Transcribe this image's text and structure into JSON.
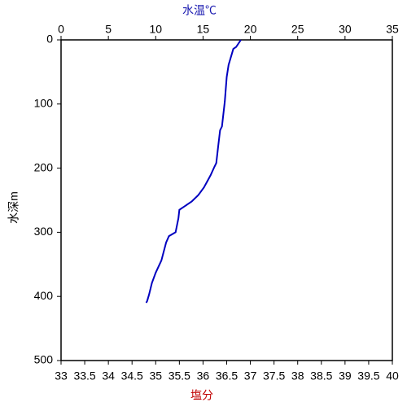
{
  "chart_data": {
    "type": "line",
    "x_label": "水温℃",
    "x2_label": "塩分",
    "y_label": "水深m",
    "xlim": [
      0,
      35
    ],
    "xticks": [
      0,
      5,
      10,
      15,
      20,
      25,
      30,
      35
    ],
    "x2lim": [
      33,
      40
    ],
    "x2ticks": [
      33,
      33.5,
      34,
      34.5,
      35,
      35.5,
      36,
      36.5,
      37,
      37.5,
      38,
      38.5,
      39,
      39.5,
      40
    ],
    "ylim": [
      500,
      0
    ],
    "yticks": [
      0,
      100,
      200,
      300,
      400,
      500
    ],
    "series": [
      {
        "color": "#0000c0",
        "x": [
          19.0,
          18.5,
          18.2,
          17.7,
          17.5,
          17.3,
          17.0,
          16.8,
          16.6,
          16.4,
          16.2,
          15.8,
          15.1,
          14.5,
          13.8,
          12.9,
          12.5,
          12.4,
          12.1,
          11.4,
          11.1,
          10.6,
          10.0,
          9.6,
          9.3,
          9.1,
          9.0
        ],
        "values": [
          0,
          11,
          14,
          39,
          58,
          96,
          135,
          141,
          166,
          192,
          198,
          211,
          230,
          242,
          252,
          261,
          265,
          278,
          300,
          306,
          316,
          344,
          363,
          379,
          397,
          407,
          410
        ]
      }
    ]
  }
}
